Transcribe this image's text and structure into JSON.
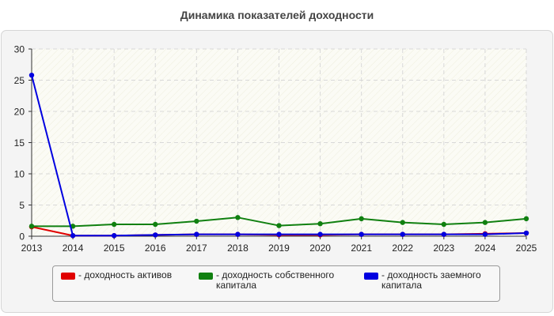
{
  "chart_data": {
    "type": "line",
    "title": "Динамика показателей доходности",
    "xlabel": "",
    "ylabel": "",
    "x": [
      "2013",
      "2014",
      "2015",
      "2016",
      "2017",
      "2018",
      "2019",
      "2020",
      "2021",
      "2022",
      "2023",
      "2024",
      "2025"
    ],
    "ylim": [
      0,
      30
    ],
    "yticks": [
      0,
      5,
      10,
      15,
      20,
      25,
      30
    ],
    "grid": true,
    "legend_position": "bottom",
    "series": [
      {
        "name": "- доходность активов",
        "color": "#e00000",
        "values": [
          1.5,
          0.1,
          0.1,
          0.2,
          0.3,
          0.3,
          0.2,
          0.2,
          0.3,
          0.3,
          0.3,
          0.4,
          0.5
        ]
      },
      {
        "name": "- доходность собственного капитала",
        "color": "#108010",
        "values": [
          1.6,
          1.6,
          1.9,
          1.9,
          2.4,
          3.0,
          1.7,
          2.0,
          2.8,
          2.2,
          1.9,
          2.2,
          2.8
        ]
      },
      {
        "name": "- доходность заемного капитала",
        "color": "#0000e0",
        "values": [
          25.8,
          0.1,
          0.1,
          0.2,
          0.3,
          0.3,
          0.3,
          0.3,
          0.3,
          0.3,
          0.3,
          0.3,
          0.5
        ]
      }
    ]
  }
}
